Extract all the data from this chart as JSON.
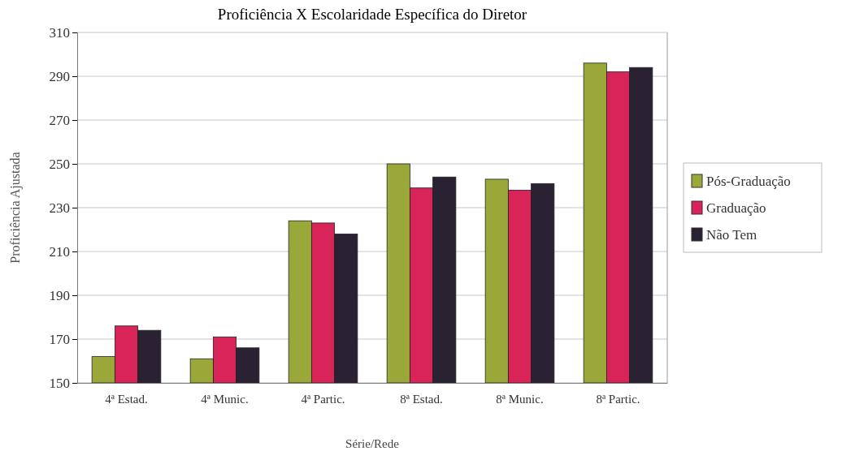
{
  "chart_data": {
    "type": "bar",
    "title": "Proficiência X Escolaridade Específica do Diretor",
    "xlabel": "Série/Rede",
    "ylabel": "Proficiência Ajustada",
    "categories": [
      "4ª Estad.",
      "4ª Munic.",
      "4ª Partic.",
      "8ª Estad.",
      "8ª Munic.",
      "8ª Partic."
    ],
    "series": [
      {
        "name": "Pós-Graduação",
        "color": "#9aa83a",
        "values": [
          162,
          161,
          224,
          250,
          243,
          296
        ]
      },
      {
        "name": "Graduação",
        "color": "#d9245a",
        "values": [
          176,
          171,
          223,
          239,
          238,
          292
        ]
      },
      {
        "name": "Não Tem",
        "color": "#2a2232",
        "values": [
          174,
          166,
          218,
          244,
          241,
          294
        ]
      }
    ],
    "ylim": [
      150,
      310
    ],
    "yticks": [
      150,
      170,
      190,
      210,
      230,
      250,
      270,
      290,
      310
    ],
    "grid": "y",
    "legend": "right"
  }
}
